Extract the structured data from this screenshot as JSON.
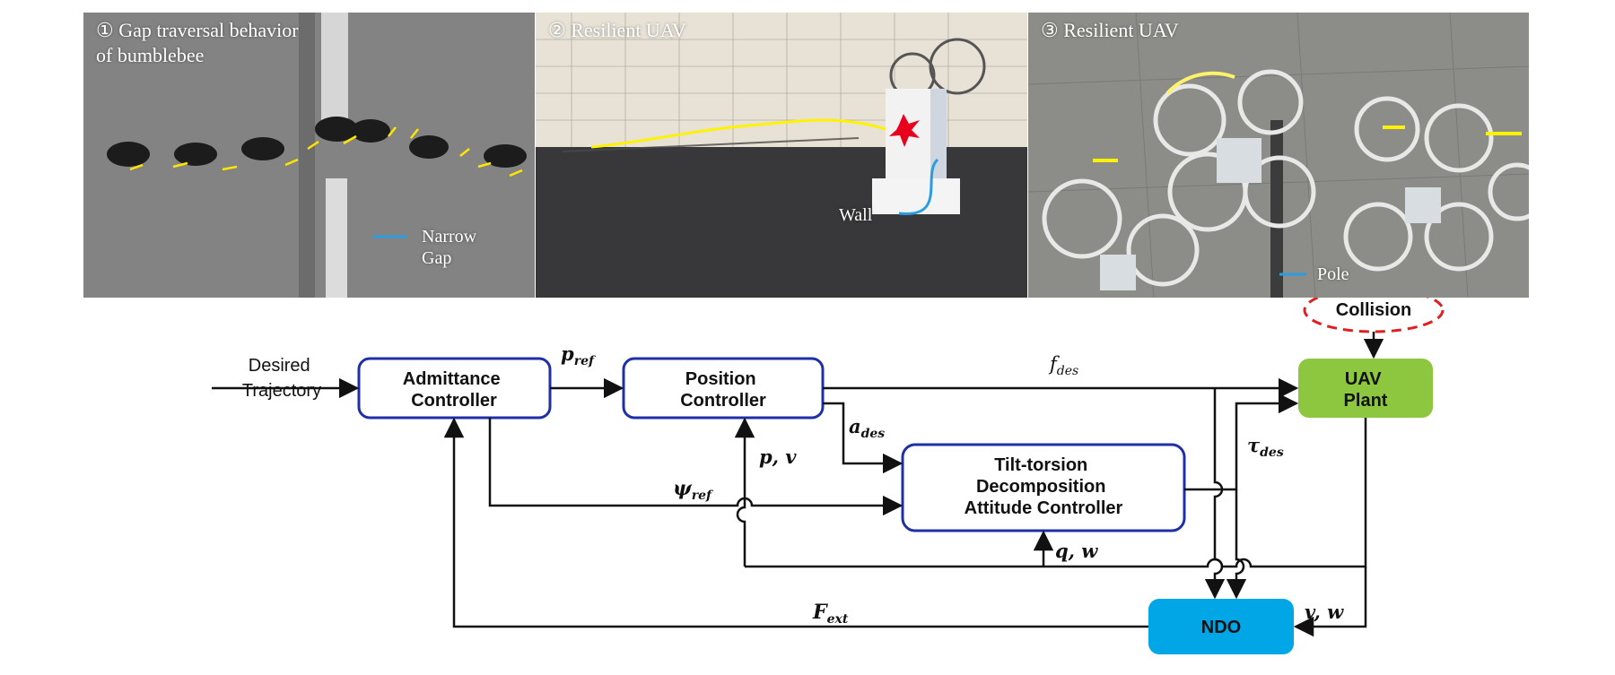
{
  "photos": [
    {
      "title": "① Gap traversal behavior\nof bumblebee",
      "label": "Narrow\nGap"
    },
    {
      "title": "② Resilient UAV",
      "label": "Wall"
    },
    {
      "title": "③ Resilient UAV",
      "label": "Pole"
    }
  ],
  "diagram": {
    "blocks": {
      "admittance": "Admittance\nController",
      "position": "Position\nController",
      "attitude": "Tilt-torsion\nDecomposition\nAttitude Controller",
      "plant": "UAV\nPlant",
      "ndo": "NDO",
      "collision": "Collision"
    },
    "inputs": {
      "desired": "Desired\nTrajectory"
    },
    "signals": {
      "p_ref": "p",
      "p_ref_sub": "ref",
      "f_des": "f",
      "f_des_sub": "des",
      "a_des": "a",
      "a_des_sub": "des",
      "tau_des": "τ",
      "tau_des_sub": "des",
      "pv": "p, v",
      "psi_ref": "ψ",
      "psi_ref_sub": "ref",
      "qw": "q, w",
      "f_ext": "F",
      "f_ext_sub": "ext",
      "vw": "v, w"
    },
    "colors": {
      "block_border": "#1f2fa8",
      "plant_fill": "#8dc63f",
      "ndo_fill": "#00a6e6",
      "collision": "#e02020",
      "arrow": "#111111"
    }
  }
}
